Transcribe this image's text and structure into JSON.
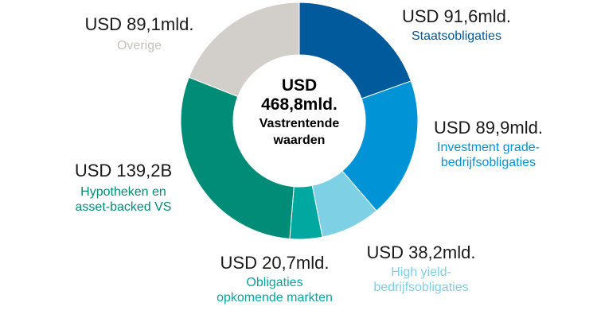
{
  "chart_data": {
    "type": "pie",
    "donut": true,
    "center": {
      "total": "USD",
      "total_value": "468,8mld.",
      "caption_line1": "Vastrentende",
      "caption_line2": "waarden"
    },
    "slices": [
      {
        "name": "Staatsobligaties",
        "value": 91.6,
        "value_label": "USD 91,6mld.",
        "color": "#005a9c"
      },
      {
        "name": "Investment grade-bedrijfsobligaties",
        "value": 89.9,
        "value_label": "USD 89,9mld.",
        "color": "#0093d6"
      },
      {
        "name": "High yield-bedrijfsobligaties",
        "value": 38.2,
        "value_label": "USD 38,2mld.",
        "color": "#7ed0e4"
      },
      {
        "name": "Obligaties opkomende markten",
        "value": 20.7,
        "value_label": "USD 20,7mld.",
        "color": "#00a8a0"
      },
      {
        "name": "Hypotheken en asset-backed VS",
        "value": 139.2,
        "value_label": "USD 139,2B",
        "color": "#008c76"
      },
      {
        "name": "Overige",
        "value": 89.1,
        "value_label": "USD 89,1mld.",
        "color": "#d2cec9"
      }
    ]
  },
  "labels": {
    "staats": {
      "value": "USD 91,6mld.",
      "line1": "Staatsobligaties"
    },
    "ig": {
      "value": "USD 89,9mld.",
      "line1": "Investment grade-",
      "line2": "bedrijfsobligaties"
    },
    "hy": {
      "value": "USD 38,2mld.",
      "line1": "High yield-",
      "line2": "bedrijfsobligaties"
    },
    "em": {
      "value": "USD 20,7mld.",
      "line1": "Obligaties",
      "line2": "opkomende markten"
    },
    "mbs": {
      "value": "USD 139,2B",
      "line1": "Hypotheken en",
      "line2": "asset-backed VS"
    },
    "overige": {
      "value": "USD 89,1mld.",
      "line1": "Overige"
    }
  }
}
